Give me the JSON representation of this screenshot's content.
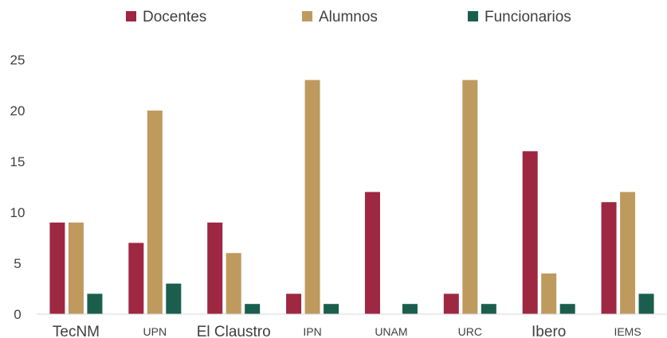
{
  "chart_data": {
    "type": "bar",
    "title": "",
    "xlabel": "",
    "ylabel": "",
    "categories": [
      "TecNM",
      "UPN",
      "El Claustro",
      "IPN",
      "UNAM",
      "URC",
      "Ibero",
      "IEMS"
    ],
    "series": [
      {
        "name": "Docentes",
        "color": "#9e2742",
        "values": [
          9,
          7,
          9,
          2,
          12,
          2,
          16,
          11
        ]
      },
      {
        "name": "Alumnos",
        "color": "#bf9a5f",
        "values": [
          9,
          20,
          6,
          23,
          0,
          23,
          4,
          12
        ]
      },
      {
        "name": "Funcionarios",
        "color": "#1b5e4e",
        "values": [
          2,
          3,
          1,
          1,
          1,
          1,
          1,
          2
        ]
      }
    ],
    "ylim": [
      0,
      25
    ],
    "yticks": [
      "0",
      "5",
      "10",
      "15",
      "20",
      "25"
    ],
    "grid": false,
    "legend_position": "top-center"
  }
}
